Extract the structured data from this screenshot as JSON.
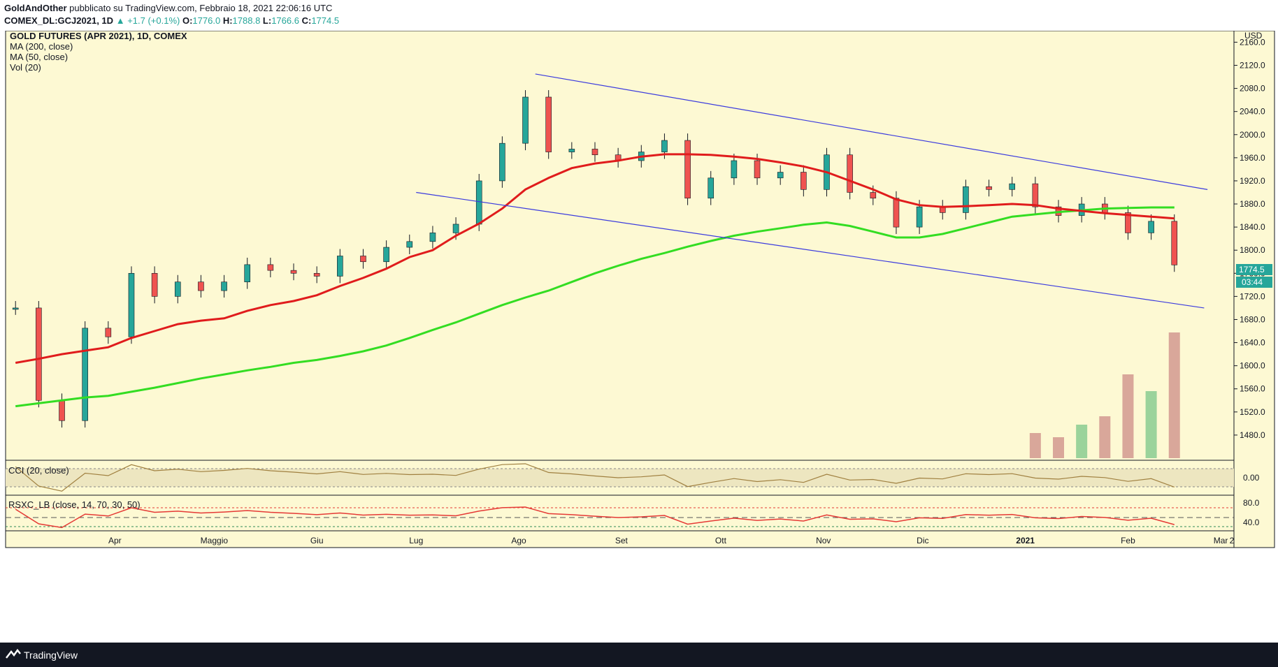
{
  "header": {
    "author": "GoldAndOther",
    "published": "pubblicato su TradingView.com, Febbraio 18, 2021 22:06:16 UTC",
    "symbol": "COMEX_DL:GCJ2021, 1D",
    "change": "+1.7 (+0.1%)",
    "o_label": "O:",
    "o_value": "1776.0",
    "h_label": "H:",
    "h_value": "1788.8",
    "l_label": "L:",
    "l_value": "1766.6",
    "c_label": "C:",
    "c_value": "1774.5"
  },
  "legend": {
    "title": "GOLD FUTURES (APR 2021), 1D, COMEX",
    "ma200": "MA (200, close)",
    "ma50": "MA (50, close)",
    "vol": "Vol (20)",
    "cci": "CCI (20, close)",
    "rsx": "RSXC_LB (close, 14, 70, 30, 50)"
  },
  "price_axis": {
    "currency": "USD",
    "ticks": [
      "2160.0",
      "2120.0",
      "2080.0",
      "2040.0",
      "2000.0",
      "1960.0",
      "1920.0",
      "1880.0",
      "1840.0",
      "1800.0",
      "1760.0",
      "1720.0",
      "1680.0",
      "1640.0",
      "1600.0",
      "1560.0",
      "1520.0",
      "1480.0"
    ],
    "last_price": "1774.5",
    "countdown": "03:44"
  },
  "cci_axis": {
    "ticks": [
      "0.00"
    ]
  },
  "rsx_axis": {
    "ticks": [
      "80.0",
      "40.0"
    ]
  },
  "time_axis": [
    "Apr",
    "Maggio",
    "Giu",
    "Lug",
    "Ago",
    "Set",
    "Ott",
    "Nov",
    "Dic",
    "2021",
    "Feb",
    "Mar",
    "2"
  ],
  "footer": {
    "brand": "TradingView"
  },
  "colors": {
    "background": "#fdf9d3",
    "candle_up": "#26a69a",
    "candle_down": "#ef5350",
    "ma50": "#e01c1c",
    "ma200": "#33dd22",
    "channel": "#3b3bde",
    "cci_line": "#a08040",
    "rsx_line": "#e53935"
  },
  "chart_data": {
    "type": "candlestick",
    "title": "GOLD FUTURES (APR 2021), 1D, COMEX",
    "x": [
      "2020-03-02",
      "2020-03-09",
      "2020-03-16",
      "2020-03-23",
      "2020-03-30",
      "2020-04-06",
      "2020-04-13",
      "2020-04-20",
      "2020-04-27",
      "2020-05-04",
      "2020-05-11",
      "2020-05-18",
      "2020-05-25",
      "2020-06-01",
      "2020-06-08",
      "2020-06-15",
      "2020-06-22",
      "2020-06-29",
      "2020-07-06",
      "2020-07-13",
      "2020-07-20",
      "2020-07-27",
      "2020-08-03",
      "2020-08-10",
      "2020-08-17",
      "2020-08-24",
      "2020-08-31",
      "2020-09-07",
      "2020-09-14",
      "2020-09-21",
      "2020-09-28",
      "2020-10-05",
      "2020-10-12",
      "2020-10-19",
      "2020-10-26",
      "2020-11-02",
      "2020-11-09",
      "2020-11-16",
      "2020-11-23",
      "2020-11-30",
      "2020-12-07",
      "2020-12-14",
      "2020-12-21",
      "2020-12-28",
      "2021-01-04",
      "2021-01-11",
      "2021-01-18",
      "2021-01-25",
      "2021-02-01",
      "2021-02-08",
      "2021-02-15"
    ],
    "close": [
      1700,
      1540,
      1505,
      1665,
      1650,
      1760,
      1720,
      1745,
      1730,
      1745,
      1775,
      1765,
      1760,
      1755,
      1790,
      1780,
      1805,
      1815,
      1830,
      1845,
      1920,
      1985,
      2065,
      1970,
      1975,
      1965,
      1955,
      1970,
      1990,
      1890,
      1925,
      1955,
      1925,
      1935,
      1905,
      1965,
      1900,
      1890,
      1840,
      1875,
      1865,
      1910,
      1905,
      1915,
      1875,
      1860,
      1880,
      1865,
      1830,
      1850,
      1774.5
    ],
    "ma50": [
      1605,
      1612,
      1620,
      1626,
      1632,
      1648,
      1660,
      1672,
      1678,
      1682,
      1695,
      1705,
      1712,
      1722,
      1738,
      1752,
      1768,
      1788,
      1800,
      1825,
      1846,
      1872,
      1905,
      1925,
      1942,
      1950,
      1955,
      1962,
      1966,
      1966,
      1965,
      1962,
      1958,
      1952,
      1945,
      1935,
      1920,
      1905,
      1888,
      1878,
      1875,
      1876,
      1878,
      1880,
      1878,
      1872,
      1868,
      1864,
      1861,
      1858,
      1855
    ],
    "ma200": [
      1530,
      1535,
      1540,
      1545,
      1548,
      1555,
      1562,
      1570,
      1578,
      1585,
      1592,
      1598,
      1605,
      1610,
      1617,
      1625,
      1635,
      1648,
      1662,
      1675,
      1690,
      1705,
      1718,
      1730,
      1745,
      1760,
      1773,
      1785,
      1795,
      1806,
      1816,
      1825,
      1832,
      1838,
      1844,
      1848,
      1842,
      1832,
      1822,
      1822,
      1828,
      1838,
      1848,
      1858,
      1862,
      1866,
      1869,
      1872,
      1873,
      1874,
      1874
    ],
    "volume": [
      0,
      0,
      0,
      0,
      0,
      0,
      0,
      0,
      0,
      0,
      0,
      0,
      0,
      0,
      0,
      0,
      0,
      0,
      0,
      0,
      0,
      0,
      0,
      0,
      0,
      0,
      0,
      0,
      0,
      0,
      0,
      0,
      0,
      0,
      0,
      0,
      0,
      0,
      0,
      0,
      0,
      0,
      0,
      0,
      0.3,
      0.25,
      0.4,
      0.5,
      1.0,
      0.8,
      1.5
    ],
    "channel_upper": [
      [
        "2020-08-06",
        2105
      ],
      [
        "2021-02-25",
        1905
      ]
    ],
    "channel_lower": [
      [
        "2020-07-01",
        1900
      ],
      [
        "2021-02-24",
        1700
      ]
    ],
    "ylim": [
      1440,
      2175
    ],
    "grid": true,
    "legend": "top-left"
  }
}
